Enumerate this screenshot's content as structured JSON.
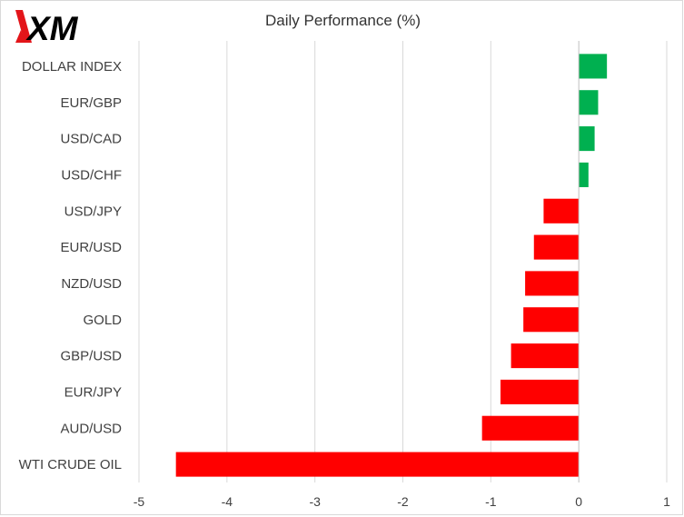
{
  "chart_data": {
    "type": "bar",
    "orientation": "horizontal",
    "title": "Daily Performance  (%)",
    "xlabel": "",
    "ylabel": "",
    "categories": [
      "DOLLAR INDEX",
      "EUR/GBP",
      "USD/CAD",
      "USD/CHF",
      "USD/JPY",
      "EUR/USD",
      "NZD/USD",
      "GOLD",
      "GBP/USD",
      "EUR/JPY",
      "AUD/USD",
      "WTI CRUDE OIL"
    ],
    "values": [
      0.32,
      0.22,
      0.18,
      0.11,
      -0.4,
      -0.51,
      -0.61,
      -0.63,
      -0.77,
      -0.89,
      -1.1,
      -4.58
    ],
    "xlim": [
      -5,
      1
    ],
    "x_ticks": [
      "-5",
      "-4",
      "-3",
      "-2",
      "-1",
      "0",
      "1"
    ],
    "grid": true,
    "colors": {
      "positive": "#00b050",
      "negative": "#ff0000",
      "grid": "#d9d9d9",
      "axis": "#bfbfbf"
    }
  },
  "logo": {
    "text": "XM",
    "color": "#e3151a",
    "text_color": "#000000"
  }
}
